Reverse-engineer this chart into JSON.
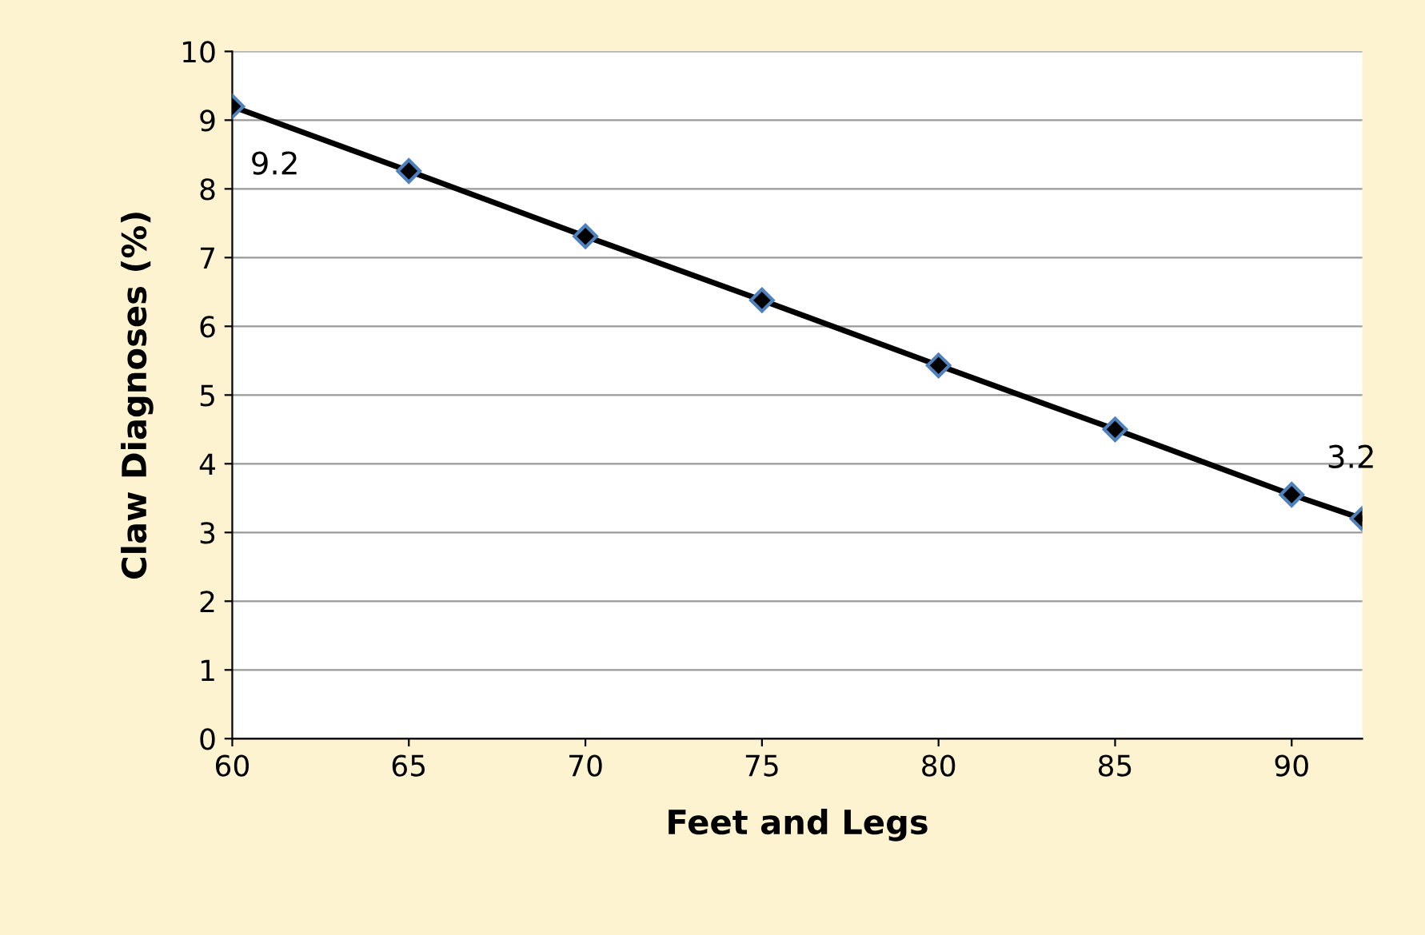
{
  "chart_data": {
    "type": "line",
    "xlabel": "Feet and Legs",
    "ylabel": "Claw Diagnoses (%)",
    "x": [
      60,
      65,
      70,
      75,
      80,
      85,
      90,
      92
    ],
    "series": [
      {
        "color": "#000000",
        "values": [
          9.2,
          8.26,
          7.31,
          6.38,
          5.43,
          4.5,
          3.55,
          3.2
        ],
        "value_labels": [
          "9.2",
          null,
          null,
          null,
          null,
          null,
          null,
          "3.2"
        ]
      }
    ],
    "xlim": [
      60,
      92
    ],
    "xticks": [
      60,
      65,
      70,
      75,
      80,
      85,
      90
    ],
    "ylim": [
      0,
      10
    ],
    "yticks": [
      0,
      1,
      2,
      3,
      4,
      5,
      6,
      7,
      8,
      9,
      10
    ],
    "grid": "y",
    "marker": "diamond",
    "line_style": "solid"
  }
}
